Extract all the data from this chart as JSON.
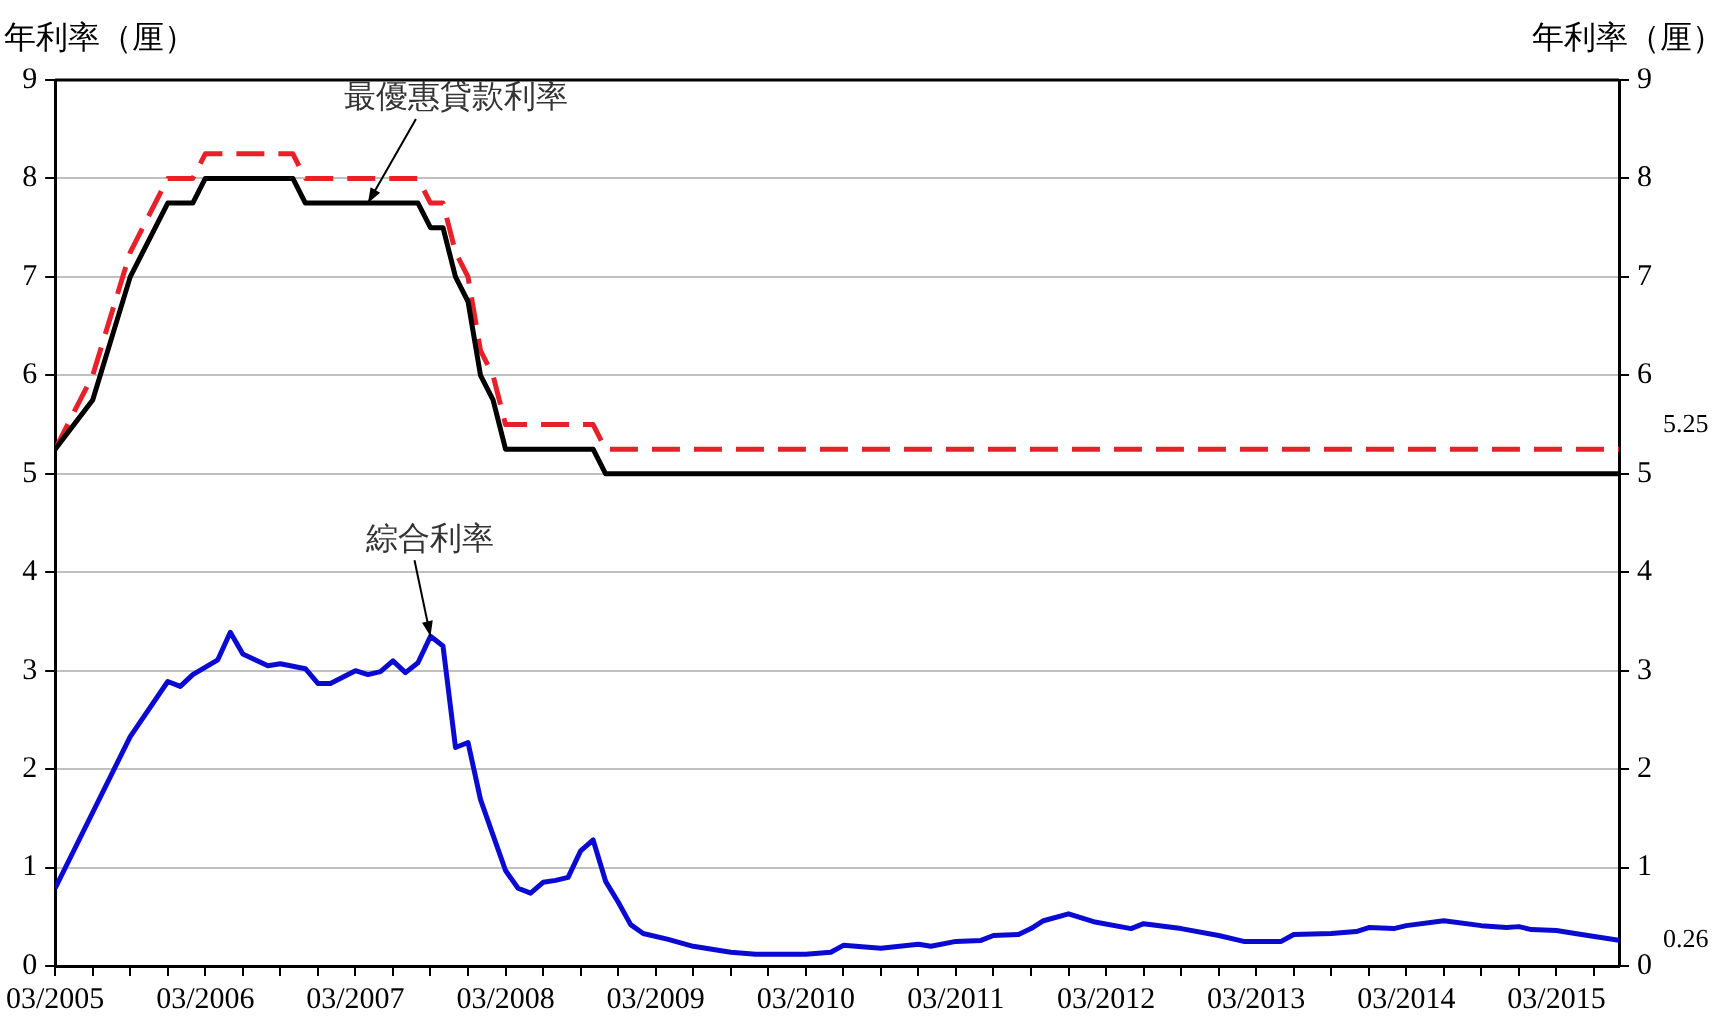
{
  "chart_data": {
    "type": "line",
    "ylabel": "年利率（厘）",
    "y2label": "年利率（厘）",
    "xlim": [
      "2005-03",
      "2015-08"
    ],
    "xticks": [
      {
        "value": "2005-03",
        "label": "03/2005"
      },
      {
        "value": "2005-06",
        "label": null
      },
      {
        "value": "2005-09",
        "label": null
      },
      {
        "value": "2005-12",
        "label": null
      },
      {
        "value": "2006-03",
        "label": "03/2006"
      },
      {
        "value": "2006-06",
        "label": null
      },
      {
        "value": "2006-09",
        "label": null
      },
      {
        "value": "2006-12",
        "label": null
      },
      {
        "value": "2007-03",
        "label": "03/2007"
      },
      {
        "value": "2007-06",
        "label": null
      },
      {
        "value": "2007-09",
        "label": null
      },
      {
        "value": "2007-12",
        "label": null
      },
      {
        "value": "2008-03",
        "label": "03/2008"
      },
      {
        "value": "2008-06",
        "label": null
      },
      {
        "value": "2008-09",
        "label": null
      },
      {
        "value": "2008-12",
        "label": null
      },
      {
        "value": "2009-03",
        "label": "03/2009"
      },
      {
        "value": "2009-06",
        "label": null
      },
      {
        "value": "2009-09",
        "label": null
      },
      {
        "value": "2009-12",
        "label": null
      },
      {
        "value": "2010-03",
        "label": "03/2010"
      },
      {
        "value": "2010-06",
        "label": null
      },
      {
        "value": "2010-09",
        "label": null
      },
      {
        "value": "2010-12",
        "label": null
      },
      {
        "value": "2011-03",
        "label": "03/2011"
      },
      {
        "value": "2011-06",
        "label": null
      },
      {
        "value": "2011-09",
        "label": null
      },
      {
        "value": "2011-12",
        "label": null
      },
      {
        "value": "2012-03",
        "label": "03/2012"
      },
      {
        "value": "2012-06",
        "label": null
      },
      {
        "value": "2012-09",
        "label": null
      },
      {
        "value": "2012-12",
        "label": null
      },
      {
        "value": "2013-03",
        "label": "03/2013"
      },
      {
        "value": "2013-06",
        "label": null
      },
      {
        "value": "2013-09",
        "label": null
      },
      {
        "value": "2013-12",
        "label": null
      },
      {
        "value": "2014-03",
        "label": "03/2014"
      },
      {
        "value": "2014-06",
        "label": null
      },
      {
        "value": "2014-09",
        "label": null
      },
      {
        "value": "2014-12",
        "label": null
      },
      {
        "value": "2015-03",
        "label": "03/2015"
      },
      {
        "value": "2015-06",
        "label": null
      }
    ],
    "ylim": [
      0,
      9
    ],
    "yticks": [
      0,
      1,
      2,
      3,
      4,
      5,
      6,
      7,
      8,
      9
    ],
    "y2lim": [
      0,
      9
    ],
    "y2ticks": [
      0,
      1,
      2,
      3,
      4,
      5,
      6,
      7,
      8,
      9
    ],
    "grid": "y",
    "legend": false,
    "marker": "none",
    "series": [
      {
        "color": "#000000",
        "line_style": "solid",
        "x": [
          "2005-03",
          "2005-06",
          "2005-09",
          "2005-12",
          "2006-02",
          "2006-03",
          "2006-10",
          "2006-11",
          "2007-08",
          "2007-09",
          "2007-10",
          "2007-11",
          "2007-12",
          "2008-01",
          "2008-02",
          "2008-03",
          "2008-10",
          "2008-11",
          "2015-08"
        ],
        "values": [
          5.25,
          5.75,
          7,
          7.75,
          7.75,
          8,
          8,
          7.75,
          7.75,
          7.5,
          7.5,
          7,
          6.75,
          6,
          5.75,
          5.25,
          5.25,
          5,
          5
        ]
      },
      {
        "color": "#e8202a",
        "line_style": "dashed",
        "x": [
          "2005-03",
          "2005-06",
          "2005-09",
          "2005-12",
          "2006-02",
          "2006-03",
          "2006-10",
          "2006-11",
          "2007-08",
          "2007-09",
          "2007-10",
          "2007-11",
          "2007-12",
          "2008-01",
          "2008-02",
          "2008-03",
          "2008-10",
          "2008-11",
          "2015-08"
        ],
        "values": [
          5.25,
          6,
          7.25,
          8,
          8,
          8.25,
          8.25,
          8,
          8,
          7.75,
          7.75,
          7.25,
          7,
          6.25,
          6,
          5.5,
          5.5,
          5.25,
          5.25
        ]
      },
      {
        "color": "#0a0ad2",
        "line_style": "solid",
        "x": [
          "2005-03",
          "2005-09",
          "2005-12",
          "2006-01",
          "2006-02",
          "2006-04",
          "2006-05",
          "2006-06",
          "2006-08",
          "2006-09",
          "2006-11",
          "2006-12",
          "2007-01",
          "2007-03",
          "2007-04",
          "2007-05",
          "2007-06",
          "2007-07",
          "2007-08",
          "2007-09",
          "2007-10",
          "2007-11",
          "2007-12",
          "2008-01",
          "2008-02",
          "2008-03",
          "2008-04",
          "2008-05",
          "2008-06",
          "2008-07",
          "2008-08",
          "2008-09",
          "2008-10",
          "2008-11",
          "2008-12",
          "2009-01",
          "2009-02",
          "2009-04",
          "2009-06",
          "2009-09",
          "2009-11",
          "2010-03",
          "2010-05",
          "2010-06",
          "2010-09",
          "2010-12",
          "2011-01",
          "2011-03",
          "2011-05",
          "2011-06",
          "2011-08",
          "2011-09",
          "2011-10",
          "2011-12",
          "2012-02",
          "2012-05",
          "2012-06",
          "2012-09",
          "2012-12",
          "2013-02",
          "2013-05",
          "2013-06",
          "2013-09",
          "2013-11",
          "2013-12",
          "2014-02",
          "2014-03",
          "2014-06",
          "2014-09",
          "2014-11",
          "2014-12",
          "2015-01",
          "2015-03",
          "2015-05",
          "2015-08"
        ],
        "values": [
          0.79,
          2.33,
          2.89,
          2.84,
          2.96,
          3.11,
          3.39,
          3.17,
          3.05,
          3.07,
          3.02,
          2.87,
          2.87,
          3.0,
          2.96,
          2.99,
          3.1,
          2.98,
          3.08,
          3.35,
          3.25,
          2.22,
          2.27,
          1.69,
          1.33,
          0.97,
          0.79,
          0.74,
          0.85,
          0.87,
          0.9,
          1.17,
          1.28,
          0.86,
          0.65,
          0.42,
          0.33,
          0.27,
          0.2,
          0.14,
          0.12,
          0.12,
          0.14,
          0.21,
          0.18,
          0.22,
          0.2,
          0.25,
          0.26,
          0.31,
          0.32,
          0.38,
          0.46,
          0.53,
          0.45,
          0.38,
          0.43,
          0.38,
          0.31,
          0.25,
          0.25,
          0.32,
          0.33,
          0.35,
          0.39,
          0.38,
          0.41,
          0.46,
          0.41,
          0.39,
          0.4,
          0.37,
          0.36,
          0.32,
          0.26
        ]
      }
    ],
    "annotations": [
      {
        "text": "最優惠貸款利率",
        "x": "2007-04",
        "y": 7.75
      },
      {
        "text": "綜合利率",
        "x": "2007-09",
        "y": 3.35
      },
      {
        "text": "5.25",
        "x": "2015-08",
        "y": 5.25
      },
      {
        "text": "0.26",
        "x": "2015-08",
        "y": 0.26
      }
    ]
  }
}
